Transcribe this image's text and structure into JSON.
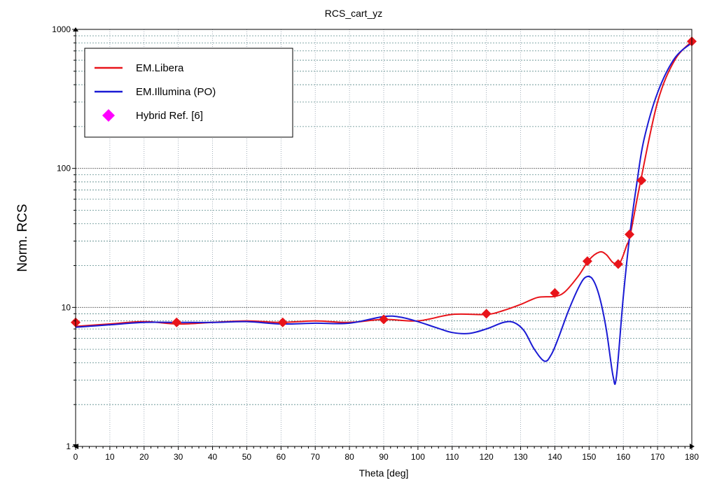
{
  "chart_data": {
    "type": "line",
    "title": "RCS_cart_yz",
    "xlabel": "Theta [deg]",
    "ylabel": "Norm. RCS",
    "xlim": [
      0,
      180
    ],
    "ylim": [
      1,
      1000
    ],
    "yscale": "log",
    "grid": true,
    "legend_placement": "top-left",
    "x_ticks": [
      0,
      10,
      20,
      30,
      40,
      50,
      60,
      70,
      80,
      90,
      100,
      110,
      120,
      130,
      140,
      150,
      160,
      170,
      180
    ],
    "y_ticks": [
      {
        "value": 1,
        "label": "1"
      },
      {
        "value": 10,
        "label": "10"
      },
      {
        "value": 100,
        "label": "100"
      },
      {
        "value": 1000,
        "label": "1000"
      }
    ],
    "series": [
      {
        "name": "EM.Libera",
        "color": "#e8141a",
        "style": "line",
        "points": [
          [
            0,
            7.3
          ],
          [
            10,
            7.6
          ],
          [
            20,
            7.9
          ],
          [
            30,
            7.6
          ],
          [
            40,
            7.8
          ],
          [
            50,
            8.0
          ],
          [
            60,
            7.8
          ],
          [
            70,
            8.0
          ],
          [
            80,
            7.8
          ],
          [
            90,
            8.2
          ],
          [
            100,
            8.0
          ],
          [
            110,
            8.9
          ],
          [
            120,
            8.9
          ],
          [
            125,
            9.5
          ],
          [
            130,
            10.5
          ],
          [
            135,
            11.8
          ],
          [
            140,
            12.0
          ],
          [
            143,
            13.0
          ],
          [
            147,
            17.0
          ],
          [
            150,
            22.0
          ],
          [
            153,
            25.0
          ],
          [
            155,
            24.0
          ],
          [
            157,
            21.0
          ],
          [
            159,
            21.0
          ],
          [
            161,
            28.0
          ],
          [
            162,
            33.0
          ],
          [
            165,
            80.0
          ],
          [
            170,
            300.0
          ],
          [
            175,
            600.0
          ],
          [
            180,
            820.0
          ]
        ]
      },
      {
        "name": "EM.Illumina (PO)",
        "color": "#1a1ad4",
        "style": "line",
        "points": [
          [
            0,
            7.2
          ],
          [
            10,
            7.5
          ],
          [
            20,
            7.8
          ],
          [
            30,
            7.8
          ],
          [
            40,
            7.8
          ],
          [
            50,
            7.9
          ],
          [
            60,
            7.6
          ],
          [
            70,
            7.7
          ],
          [
            80,
            7.7
          ],
          [
            90,
            8.6
          ],
          [
            95,
            8.5
          ],
          [
            100,
            7.9
          ],
          [
            105,
            7.2
          ],
          [
            110,
            6.6
          ],
          [
            115,
            6.5
          ],
          [
            120,
            7.0
          ],
          [
            125,
            7.8
          ],
          [
            128,
            7.8
          ],
          [
            131,
            6.8
          ],
          [
            134,
            5.0
          ],
          [
            137,
            4.1
          ],
          [
            139,
            4.6
          ],
          [
            141,
            6.0
          ],
          [
            144,
            9.5
          ],
          [
            147,
            14.0
          ],
          [
            149,
            16.5
          ],
          [
            151,
            16.0
          ],
          [
            153,
            12.0
          ],
          [
            155,
            7.0
          ],
          [
            157,
            3.2
          ],
          [
            158,
            3.2
          ],
          [
            160,
            12.0
          ],
          [
            162,
            35.0
          ],
          [
            164,
            80.0
          ],
          [
            166,
            160.0
          ],
          [
            170,
            350.0
          ],
          [
            175,
            620.0
          ],
          [
            180,
            800.0
          ]
        ]
      },
      {
        "name": "Hybrid Ref. [6]",
        "color": "#ff00ff",
        "marker_color": "#e8141a",
        "style": "marker",
        "points": [
          [
            0,
            7.8
          ],
          [
            29.5,
            7.8
          ],
          [
            60.5,
            7.8
          ],
          [
            90,
            8.2
          ],
          [
            120,
            9.0
          ],
          [
            140,
            12.7
          ],
          [
            149.5,
            21.5
          ],
          [
            158.5,
            20.5
          ],
          [
            161.8,
            33.5
          ],
          [
            165.3,
            82.0
          ],
          [
            180,
            820.0
          ]
        ]
      }
    ]
  }
}
